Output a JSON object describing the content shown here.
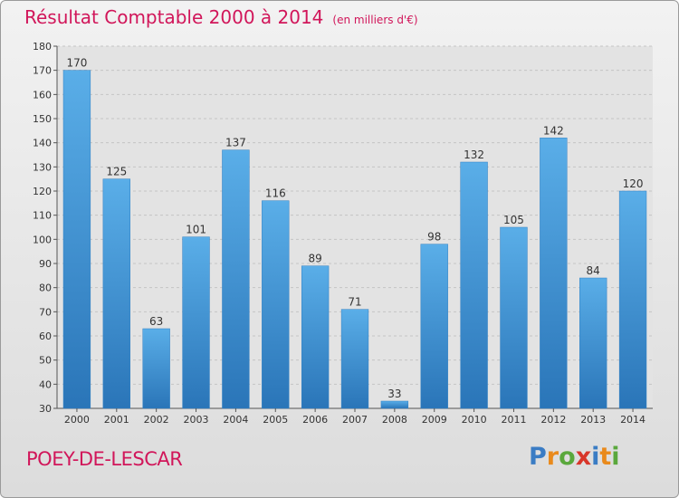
{
  "chart_data": {
    "type": "bar",
    "title": "Résultat Comptable 2000 à 2014",
    "subtitle": "(en milliers d'€)",
    "categories": [
      "2000",
      "2001",
      "2002",
      "2003",
      "2004",
      "2005",
      "2006",
      "2007",
      "2008",
      "2009",
      "2010",
      "2011",
      "2012",
      "2013",
      "2014"
    ],
    "values": [
      170,
      125,
      63,
      101,
      137,
      116,
      89,
      71,
      33,
      98,
      132,
      105,
      142,
      84,
      120
    ],
    "ylim": [
      30,
      180
    ],
    "yticks": [
      30,
      40,
      50,
      60,
      70,
      80,
      90,
      100,
      110,
      120,
      130,
      140,
      150,
      160,
      170,
      180
    ],
    "grid": true,
    "bar_color": "#3d8fd6",
    "accent_color": "#d1165a"
  },
  "location": "POEY-DE-LESCAR",
  "brand": {
    "letters": [
      "P",
      "r",
      "o",
      "x",
      "i",
      "t",
      "i"
    ],
    "colors": [
      "#3a7cc4",
      "#e98a1c",
      "#5aa83c",
      "#d8362a",
      "#3a7cc4",
      "#e98a1c",
      "#5aa83c"
    ]
  }
}
